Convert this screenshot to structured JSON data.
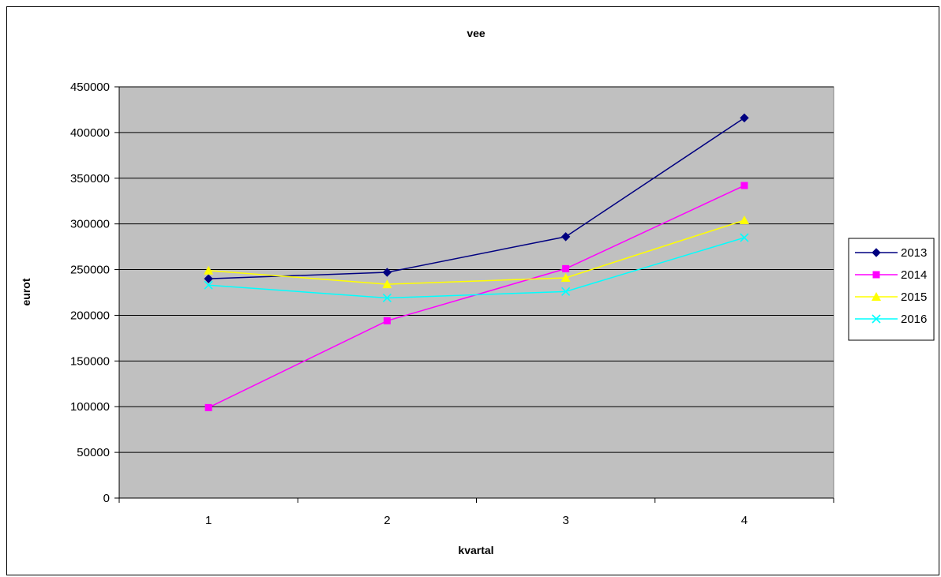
{
  "chart_data": {
    "type": "line",
    "title": "vee",
    "xlabel": "kvartal",
    "ylabel": "eurot",
    "categories": [
      "1",
      "2",
      "3",
      "4"
    ],
    "ylim": [
      0,
      450000
    ],
    "yticks": [
      0,
      50000,
      100000,
      150000,
      200000,
      250000,
      300000,
      350000,
      400000,
      450000
    ],
    "grid": "horizontal",
    "legend_position": "right",
    "plot_background": "#c0c0c0",
    "series": [
      {
        "name": "2013",
        "color": "#000080",
        "marker": "diamond",
        "values": [
          240000,
          247000,
          286000,
          416000
        ]
      },
      {
        "name": "2014",
        "color": "#ff00ff",
        "marker": "square",
        "values": [
          99000,
          194000,
          251000,
          342000
        ]
      },
      {
        "name": "2015",
        "color": "#ffff00",
        "marker": "triangle",
        "values": [
          249000,
          234000,
          241000,
          304000
        ]
      },
      {
        "name": "2016",
        "color": "#00ffff",
        "marker": "x",
        "values": [
          233000,
          219000,
          226000,
          285000
        ]
      }
    ]
  }
}
